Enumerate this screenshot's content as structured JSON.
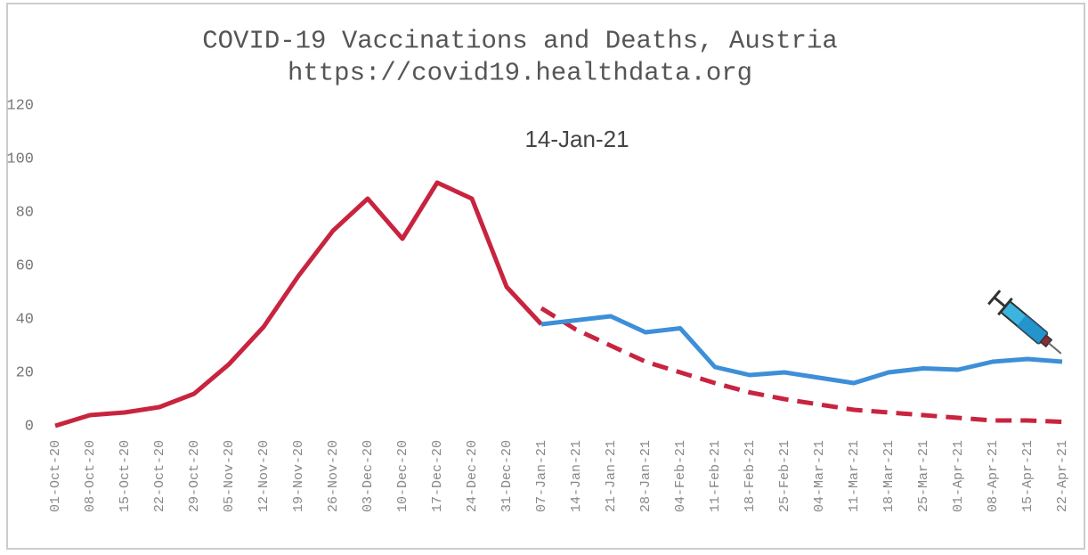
{
  "chart_data": {
    "type": "line",
    "title": "COVID-19 Vaccinations and Deaths, Austria",
    "subtitle": "https://covid19.healthdata.org",
    "annotation": "14-Jan-21",
    "categories": [
      "01-Oct-20",
      "08-Oct-20",
      "15-Oct-20",
      "22-Oct-20",
      "29-Oct-20",
      "05-Nov-20",
      "12-Nov-20",
      "19-Nov-20",
      "26-Nov-20",
      "03-Dec-20",
      "10-Dec-20",
      "17-Dec-20",
      "24-Dec-20",
      "31-Dec-20",
      "07-Jan-21",
      "14-Jan-21",
      "21-Jan-21",
      "28-Jan-21",
      "04-Feb-21",
      "11-Feb-21",
      "18-Feb-21",
      "25-Feb-21",
      "04-Mar-21",
      "11-Mar-21",
      "18-Mar-21",
      "25-Mar-21",
      "01-Apr-21",
      "08-Apr-21",
      "15-Apr-21",
      "22-Apr-21"
    ],
    "series": [
      {
        "color": "#c8243f",
        "dashed": false,
        "values": [
          0,
          4,
          5,
          7,
          12,
          23,
          37,
          56,
          73,
          85,
          70,
          91,
          85,
          52,
          38,
          null,
          null,
          null,
          null,
          null,
          null,
          null,
          null,
          null,
          null,
          null,
          null,
          null,
          null,
          null
        ]
      },
      {
        "color": "#c8243f",
        "dashed": true,
        "values": [
          null,
          null,
          null,
          null,
          null,
          null,
          null,
          null,
          null,
          null,
          null,
          null,
          null,
          null,
          44,
          36,
          30,
          24,
          20,
          16,
          12.5,
          10,
          8,
          6,
          5,
          4,
          3,
          2,
          2,
          1.5
        ]
      },
      {
        "color": "#3d8fd8",
        "dashed": false,
        "values": [
          null,
          null,
          null,
          null,
          null,
          null,
          null,
          null,
          null,
          null,
          null,
          null,
          null,
          null,
          38,
          39.5,
          41,
          35,
          36.5,
          22,
          19,
          20,
          18,
          16,
          20,
          21.5,
          21,
          24,
          25,
          24
        ]
      }
    ],
    "ylim": [
      0,
      120
    ],
    "yticks": [
      0,
      20,
      40,
      60,
      80,
      100,
      120
    ],
    "grid": false
  }
}
